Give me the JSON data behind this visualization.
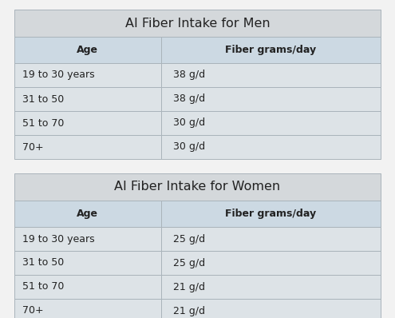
{
  "men_title": "AI Fiber Intake for Men",
  "women_title": "AI Fiber Intake for Women",
  "col_headers": [
    "Age",
    "Fiber grams/day"
  ],
  "men_rows": [
    [
      "19 to 30 years",
      "38 g/d"
    ],
    [
      "31 to 50",
      "38 g/d"
    ],
    [
      "51 to 70",
      "30 g/d"
    ],
    [
      "70+",
      "30 g/d"
    ]
  ],
  "women_rows": [
    [
      "19 to 30 years",
      "25 g/d"
    ],
    [
      "31 to 50",
      "25 g/d"
    ],
    [
      "51 to 70",
      "21 g/d"
    ],
    [
      "70+",
      "21 g/d"
    ]
  ],
  "title_bg": "#d4d8db",
  "header_bg": "#ccd9e3",
  "row_bg": "#dde3e7",
  "row_white_bg": "#ffffff",
  "border_color": "#aab4bb",
  "text_color": "#222222",
  "fig_bg": "#f2f2f2",
  "title_fontsize": 11.5,
  "header_fontsize": 9,
  "row_fontsize": 9,
  "col_split": 0.4
}
